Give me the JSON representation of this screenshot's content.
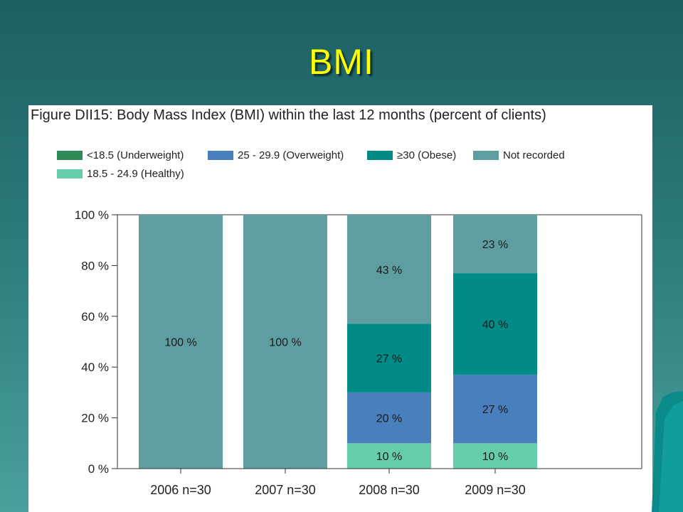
{
  "slide": {
    "title": "BMI"
  },
  "figure": {
    "caption": "Figure DII15: Body Mass Index (BMI) within the last 12 months (percent of clients)"
  },
  "colors": {
    "underweight": "#2e8b57",
    "healthy": "#66cdaa",
    "overweight": "#4a7fbe",
    "obese": "#008b87",
    "not_recorded": "#5f9ea0"
  },
  "chart_data": {
    "type": "bar",
    "stacked": true,
    "categories": [
      "2006 n=30",
      "2007 n=30",
      "2008 n=30",
      "2009 n=30"
    ],
    "series": [
      {
        "name": "<18.5 (Underweight)",
        "color": "#2e8b57",
        "values": [
          0,
          0,
          0,
          0
        ]
      },
      {
        "name": "18.5 - 24.9 (Healthy)",
        "color": "#66cdaa",
        "values": [
          0,
          0,
          10,
          10
        ]
      },
      {
        "name": "25 - 29.9 (Overweight)",
        "color": "#4a7fbe",
        "values": [
          0,
          0,
          20,
          27
        ]
      },
      {
        "name": "≥30 (Obese)",
        "color": "#008b87",
        "values": [
          0,
          0,
          27,
          40
        ]
      },
      {
        "name": "Not recorded",
        "color": "#5f9ea0",
        "values": [
          100,
          100,
          43,
          23
        ]
      }
    ],
    "data_labels": [
      [
        "",
        "",
        "",
        "",
        "100 %"
      ],
      [
        "",
        "",
        "",
        "",
        "100 %"
      ],
      [
        "",
        "10 %",
        "20 %",
        "27 %",
        "43 %"
      ],
      [
        "",
        "10 %",
        "27 %",
        "40 %",
        "23 %"
      ]
    ],
    "y_ticks": [
      "0 %",
      "20 %",
      "40 %",
      "60 %",
      "80 %",
      "100 %"
    ],
    "ylim": [
      0,
      100
    ],
    "grid": false,
    "legend_position": "top-left"
  }
}
